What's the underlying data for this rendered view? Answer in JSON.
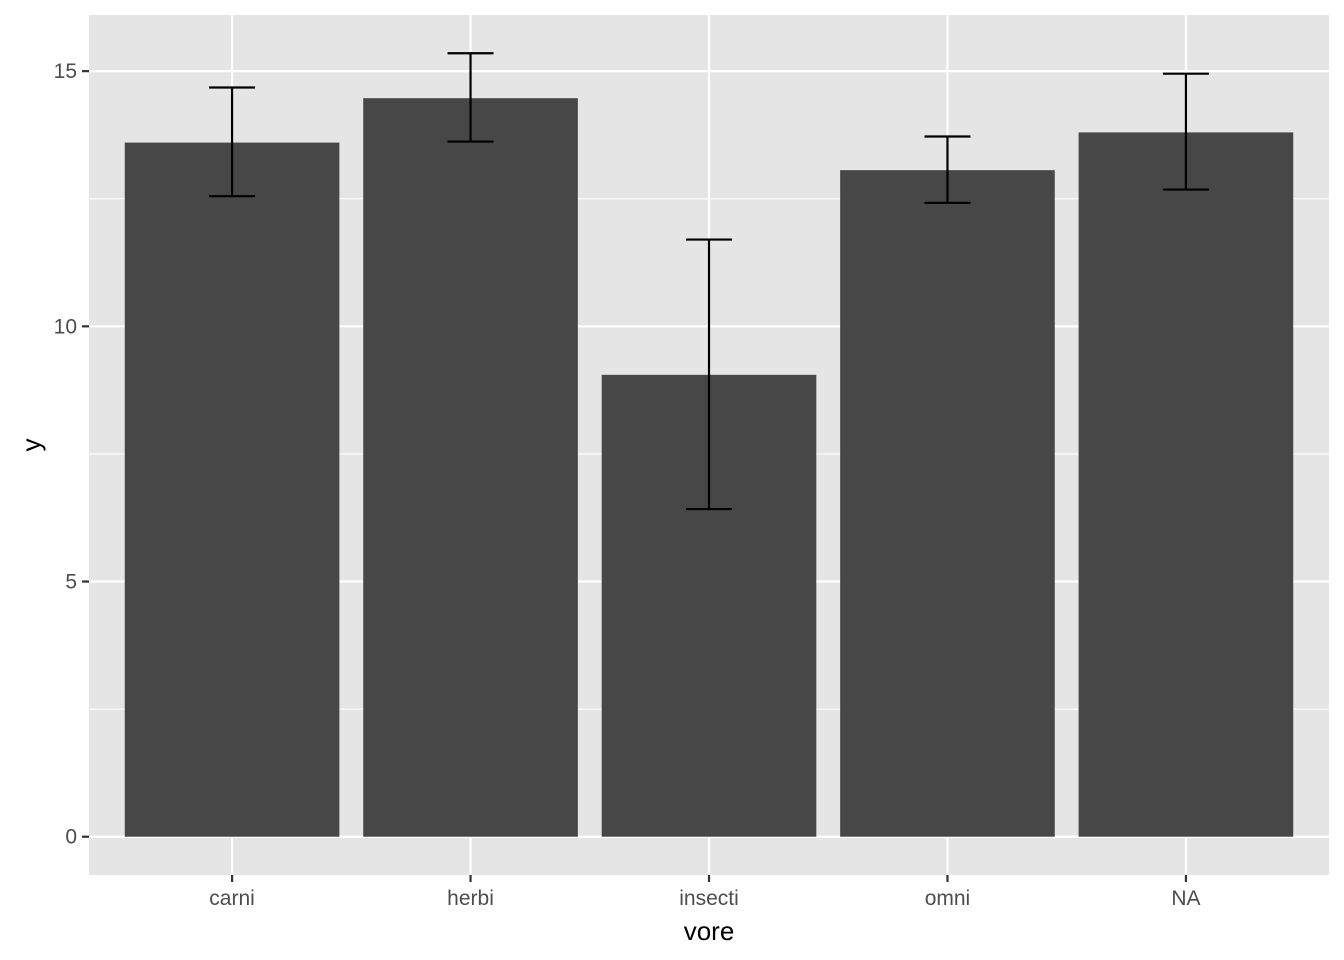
{
  "chart_data": {
    "type": "bar",
    "title": "",
    "xlabel": "vore",
    "ylabel": "y",
    "categories": [
      "carni",
      "herbi",
      "insecti",
      "omni",
      "NA"
    ],
    "values": [
      13.6,
      14.47,
      9.05,
      13.06,
      13.8
    ],
    "error_low": [
      12.55,
      13.62,
      6.42,
      12.42,
      12.68
    ],
    "error_high": [
      14.68,
      15.35,
      11.7,
      13.72,
      14.95
    ],
    "ylim": [
      -0.75,
      16.1
    ],
    "yticks": [
      0,
      5,
      10,
      15
    ],
    "grid": true,
    "colors": {
      "panel": "#e5e5e5",
      "grid": "#ffffff",
      "bar": "#474747",
      "errorbar": "#000000",
      "tick": "#333333"
    }
  }
}
